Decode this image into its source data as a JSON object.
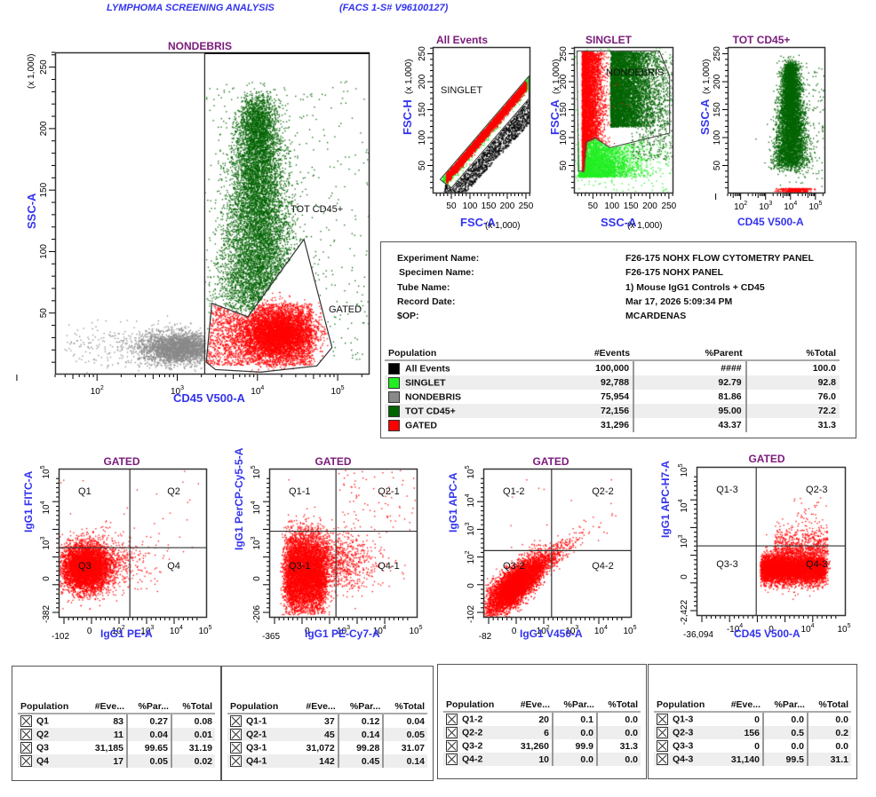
{
  "header": {
    "title": "LYMPHOMA SCREENING ANALYSIS",
    "instrument": "(FACS 1-S# V96100127)"
  },
  "colors": {
    "all_events": "#000000",
    "singlet": "#22ee22",
    "nondebris": "#888888",
    "tot_cd45": "#006400",
    "gated": "#ff0000",
    "axis_label": "#3333ee",
    "plot_title": "#7a1a7a"
  },
  "chart_data": [
    {
      "id": "nondebris-plot",
      "type": "scatter",
      "title": "NONDEBRIS",
      "xlabel": "CD45 V500-A",
      "ylabel": "SSC-A",
      "y_scale_label": "(x 1,000)",
      "xscale": "log",
      "xlim": [
        30,
        250000
      ],
      "ylim": [
        0,
        262
      ],
      "x_ticks": [
        "10^2",
        "10^3",
        "10^4",
        "10^5"
      ],
      "y_ticks": [
        "50",
        "100",
        "150",
        "200",
        "250"
      ],
      "gates": [
        {
          "name": "TOT CD45+",
          "shape": "rectangle",
          "x_min": 2200,
          "x_max": 250000,
          "y_min": 0,
          "y_max": 262
        },
        {
          "name": "GATED",
          "shape": "polygon",
          "points": [
            [
              2700,
              58
            ],
            [
              7600,
              47
            ],
            [
              38000,
              110
            ],
            [
              85000,
              22
            ],
            [
              55000,
              7
            ],
            [
              11000,
              2
            ],
            [
              3000,
              4
            ],
            [
              2300,
              10
            ]
          ]
        }
      ],
      "populations": [
        {
          "name": "NONDEBRIS",
          "color": "#888888",
          "center": [
            1000,
            22
          ]
        },
        {
          "name": "TOT CD45+",
          "color": "#006400",
          "center": [
            10000,
            120
          ]
        },
        {
          "name": "GATED",
          "color": "#ff0000",
          "center": [
            17000,
            35
          ]
        }
      ]
    },
    {
      "id": "all-events-plot",
      "type": "scatter",
      "title": "All Events",
      "xlabel": "FSC-A",
      "ylabel": "FSC-H",
      "scale_label": "(x 1,000)",
      "xlim": [
        0,
        262
      ],
      "ylim": [
        0,
        262
      ],
      "x_ticks": [
        "50",
        "100",
        "150",
        "200",
        "250"
      ],
      "y_ticks": [
        "50",
        "100",
        "150",
        "200",
        "250"
      ],
      "gates": [
        {
          "name": "SINGLET",
          "shape": "polygon",
          "points": [
            [
              20,
              25
            ],
            [
              258,
              210
            ],
            [
              258,
              170
            ],
            [
              50,
              10
            ]
          ]
        }
      ]
    },
    {
      "id": "singlet-plot",
      "type": "scatter",
      "title": "SINGLET",
      "xlabel": "SSC-A",
      "ylabel": "FSC-A",
      "scale_label": "(x 1,000)",
      "xlim": [
        0,
        262
      ],
      "ylim": [
        0,
        262
      ],
      "x_ticks": [
        "50",
        "100",
        "150",
        "200",
        "250"
      ],
      "y_ticks": [
        "50",
        "100",
        "150",
        "200",
        "250"
      ],
      "gates": [
        {
          "name": "NONDEBRIS",
          "shape": "polygon",
          "points": [
            [
              8,
              255
            ],
            [
              225,
              255
            ],
            [
              252,
              210
            ],
            [
              252,
              108
            ],
            [
              95,
              82
            ],
            [
              55,
              100
            ],
            [
              32,
              92
            ],
            [
              25,
              40
            ],
            [
              12,
              40
            ]
          ]
        }
      ]
    },
    {
      "id": "tot-cd45-plot",
      "type": "scatter",
      "title": "TOT CD45+",
      "xlabel": "CD45 V500-A",
      "ylabel": "SSC-A",
      "scale_label": "(x 1,000)",
      "xscale": "log",
      "xlim": [
        30,
        250000
      ],
      "ylim": [
        0,
        262
      ],
      "x_ticks": [
        "10^2",
        "10^3",
        "10^4",
        "10^5"
      ],
      "y_ticks": [
        "50",
        "100",
        "150",
        "200",
        "250"
      ]
    },
    {
      "id": "q-plot-1",
      "type": "scatter",
      "title": "GATED",
      "xlabel": "IgG1 PE-A",
      "ylabel": "IgG1 FITC-A",
      "x_ticks": [
        "-102",
        "0",
        "10^2",
        "10^3",
        "10^4",
        "10^5"
      ],
      "y_ticks": [
        "-382",
        "0",
        "10^3",
        "10^4",
        "10^5"
      ],
      "quadrants": [
        "Q1",
        "Q2",
        "Q3",
        "Q4"
      ]
    },
    {
      "id": "q-plot-2",
      "type": "scatter",
      "title": "GATED",
      "xlabel": "IgG1 PE-Cy7-A",
      "ylabel": "IgG1 PerCP-Cy5-5-A",
      "x_ticks": [
        "-365",
        "0",
        "10^3",
        "10^4",
        "10^5"
      ],
      "y_ticks": [
        "-206",
        "0",
        "10^3",
        "10^4",
        "10^5"
      ],
      "quadrants": [
        "Q1-1",
        "Q2-1",
        "Q3-1",
        "Q4-1"
      ]
    },
    {
      "id": "q-plot-3",
      "type": "scatter",
      "title": "GATED",
      "xlabel": "IgG1 V450-A",
      "ylabel": "IgG1 APC-A",
      "x_ticks": [
        "-82",
        "0",
        "10^2",
        "10^3",
        "10^4",
        "10^5"
      ],
      "y_ticks": [
        "-102",
        "0",
        "10^2",
        "10^3",
        "10^4",
        "10^5"
      ],
      "quadrants": [
        "Q1-2",
        "Q2-2",
        "Q3-2",
        "Q4-2"
      ]
    },
    {
      "id": "q-plot-4",
      "type": "scatter",
      "title": "GATED",
      "xlabel": "CD45 V500-A",
      "ylabel": "IgG1 APC-H7-A",
      "x_ticks": [
        "-36,094",
        "-10^4",
        "0",
        "10^4",
        "10^5"
      ],
      "y_ticks": [
        "-2,422",
        "0",
        "10^3",
        "10^4",
        "10^5"
      ],
      "quadrants": [
        "Q1-3",
        "Q2-3",
        "Q3-3",
        "Q4-3"
      ]
    }
  ],
  "experiment": {
    "fields": [
      {
        "label": "Experiment Name:",
        "value": "F26-175 NOHX FLOW CYTOMETRY  PANEL"
      },
      {
        "label": "Specimen Name:",
        "value": "F26-175 NOHX PANEL"
      },
      {
        "label": "Tube Name:",
        "value": "1)  Mouse IgG1 Controls + CD45"
      },
      {
        "label": "Record Date:",
        "value": "Mar 17, 2026 5:09:34 PM"
      },
      {
        "label": "$OP:",
        "value": "MCARDENAS"
      }
    ]
  },
  "population_table": {
    "headers": [
      "Population",
      "#Events",
      "%Parent",
      "%Total"
    ],
    "rows": [
      {
        "name": "All Events",
        "color": "#000000",
        "events": "100,000",
        "parent": "####",
        "total": "100.0"
      },
      {
        "name": "SINGLET",
        "color": "#22ee22",
        "events": "92,788",
        "parent": "92.79",
        "total": "92.8"
      },
      {
        "name": "NONDEBRIS",
        "color": "#888888",
        "events": "75,954",
        "parent": "81.86",
        "total": "76.0"
      },
      {
        "name": "TOT CD45+",
        "color": "#006400",
        "events": "72,156",
        "parent": "95.00",
        "total": "72.2"
      },
      {
        "name": "GATED",
        "color": "#ff0000",
        "events": "31,296",
        "parent": "43.37",
        "total": "31.3"
      }
    ]
  },
  "quadrant_tables": [
    {
      "headers": [
        "Population",
        "#Eve...",
        "%Par...",
        "%Total"
      ],
      "rows": [
        {
          "name": "Q1",
          "events": "83",
          "parent": "0.27",
          "total": "0.08"
        },
        {
          "name": "Q2",
          "events": "11",
          "parent": "0.04",
          "total": "0.01"
        },
        {
          "name": "Q3",
          "events": "31,185",
          "parent": "99.65",
          "total": "31.19"
        },
        {
          "name": "Q4",
          "events": "17",
          "parent": "0.05",
          "total": "0.02"
        }
      ]
    },
    {
      "headers": [
        "Population",
        "#Eve...",
        "%Par...",
        "%Total"
      ],
      "rows": [
        {
          "name": "Q1-1",
          "events": "37",
          "parent": "0.12",
          "total": "0.04"
        },
        {
          "name": "Q2-1",
          "events": "45",
          "parent": "0.14",
          "total": "0.05"
        },
        {
          "name": "Q3-1",
          "events": "31,072",
          "parent": "99.28",
          "total": "31.07"
        },
        {
          "name": "Q4-1",
          "events": "142",
          "parent": "0.45",
          "total": "0.14"
        }
      ]
    },
    {
      "headers": [
        "Population",
        "#Eve...",
        "%Par...",
        "%Total"
      ],
      "rows": [
        {
          "name": "Q1-2",
          "events": "20",
          "parent": "0.1",
          "total": "0.0"
        },
        {
          "name": "Q2-2",
          "events": "6",
          "parent": "0.0",
          "total": "0.0"
        },
        {
          "name": "Q3-2",
          "events": "31,260",
          "parent": "99.9",
          "total": "31.3"
        },
        {
          "name": "Q4-2",
          "events": "10",
          "parent": "0.0",
          "total": "0.0"
        }
      ]
    },
    {
      "headers": [
        "Population",
        "#Eve...",
        "%Par...",
        "%Total"
      ],
      "rows": [
        {
          "name": "Q1-3",
          "events": "0",
          "parent": "0.0",
          "total": "0.0"
        },
        {
          "name": "Q2-3",
          "events": "156",
          "parent": "0.5",
          "total": "0.2"
        },
        {
          "name": "Q3-3",
          "events": "0",
          "parent": "0.0",
          "total": "0.0"
        },
        {
          "name": "Q4-3",
          "events": "31,140",
          "parent": "99.5",
          "total": "31.1"
        }
      ]
    }
  ]
}
